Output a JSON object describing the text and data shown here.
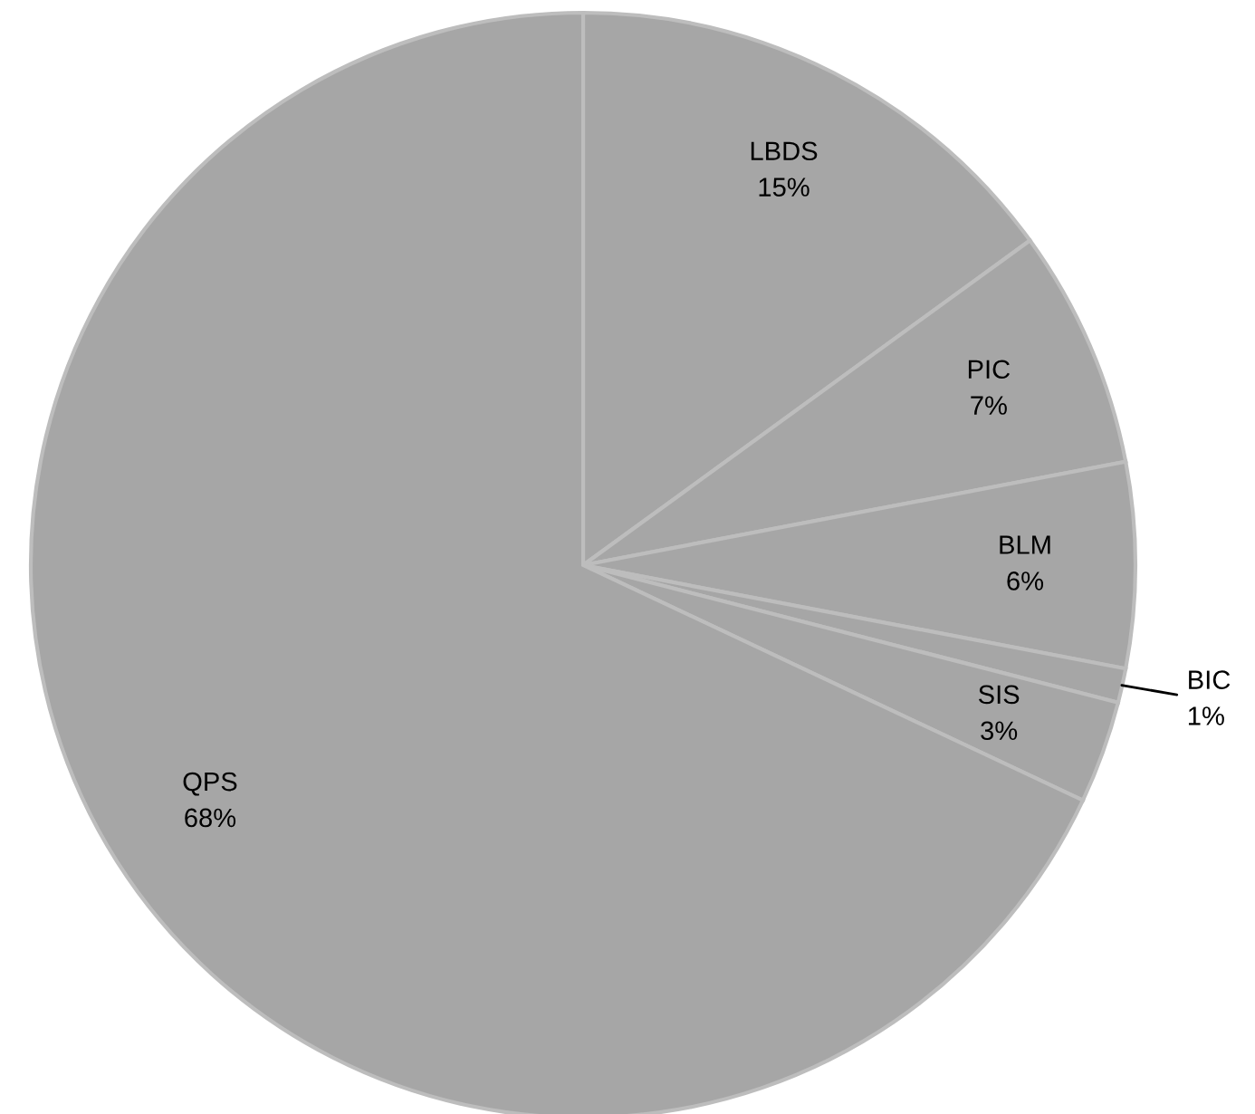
{
  "chart_data": {
    "type": "pie",
    "categories": [
      "LBDS",
      "PIC",
      "BLM",
      "BIC",
      "SIS",
      "QPS"
    ],
    "values": [
      15,
      7,
      6,
      1,
      3,
      68
    ],
    "value_labels": [
      "15%",
      "7%",
      "6%",
      "1%",
      "3%",
      "68%"
    ],
    "colors": [
      "#a6a6a6",
      "#a6a6a6",
      "#a6a6a6",
      "#a6a6a6",
      "#a6a6a6",
      "#a6a6a6"
    ],
    "legend": false
  }
}
